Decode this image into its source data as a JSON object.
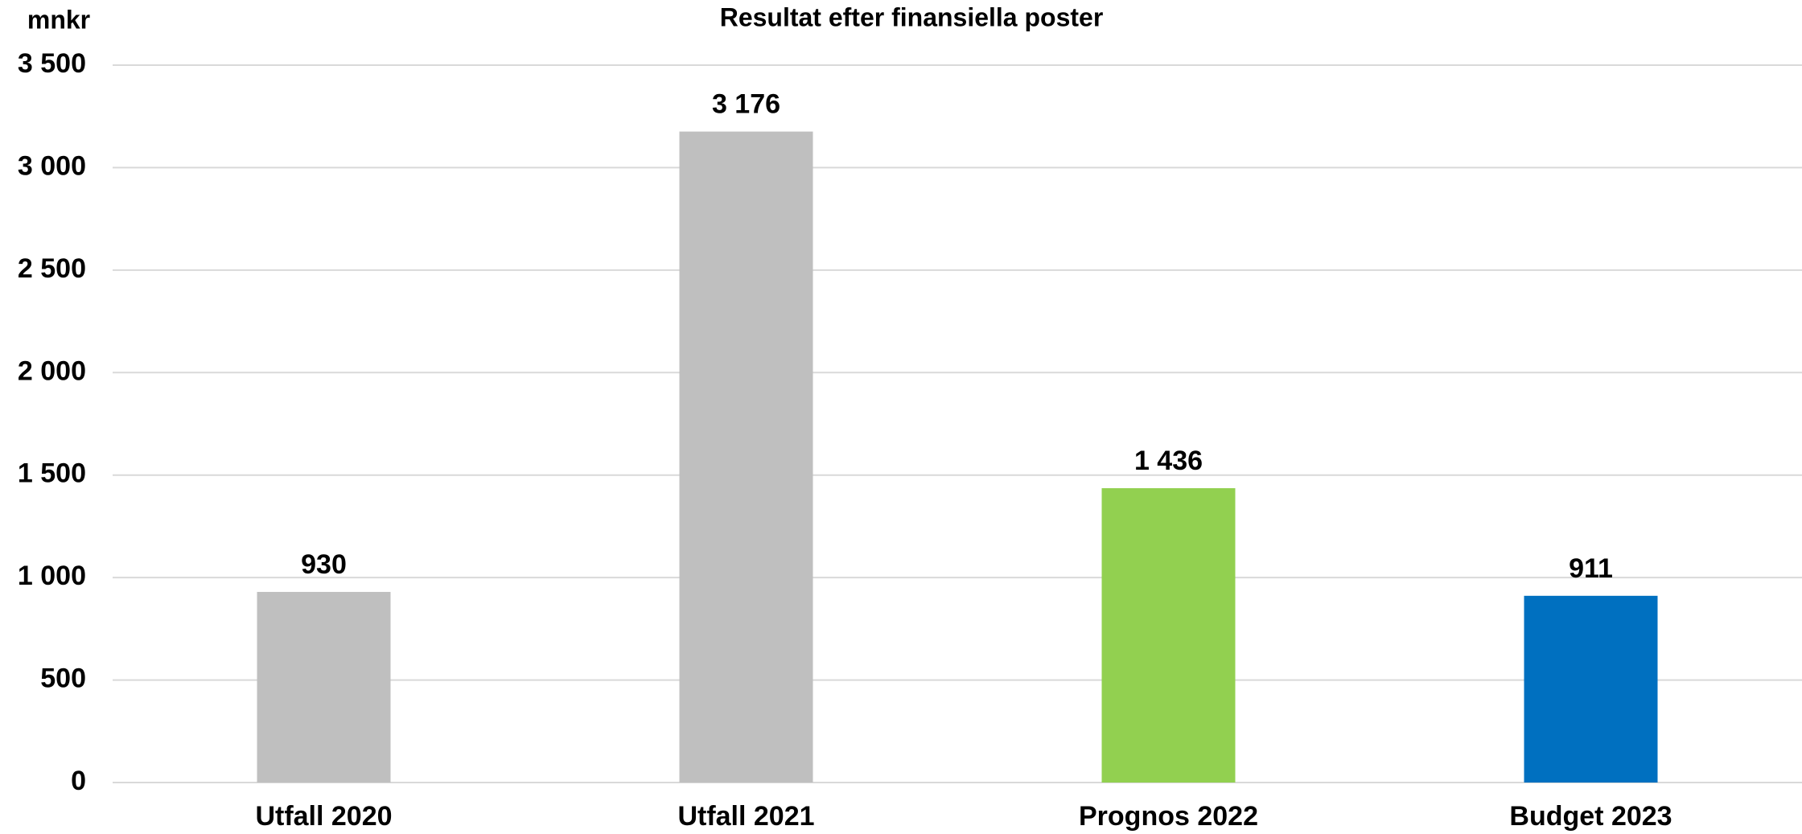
{
  "chart_data": {
    "type": "bar",
    "title": "Resultat efter finansiella poster",
    "y_label": "mnkr",
    "categories": [
      "Utfall 2020",
      "Utfall 2021",
      "Prognos 2022",
      "Budget 2023"
    ],
    "values": [
      930,
      3176,
      1436,
      911
    ],
    "value_labels": [
      "930",
      "3 176",
      "1 436",
      "911"
    ],
    "colors": [
      "#bfbfbf",
      "#bfbfbf",
      "#92d050",
      "#0070c0"
    ],
    "ylim": [
      0,
      3500
    ],
    "yticks": [
      0,
      500,
      {
        "value": 1000,
        "label": "1 000"
      },
      {
        "value": 1500,
        "label": "1 500"
      },
      {
        "value": 2000,
        "label": "2 000"
      },
      {
        "value": 2500,
        "label": "2 500"
      },
      {
        "value": 3000,
        "label": "3 000"
      },
      {
        "value": 3500,
        "label": "3 500"
      }
    ],
    "grid": true
  }
}
